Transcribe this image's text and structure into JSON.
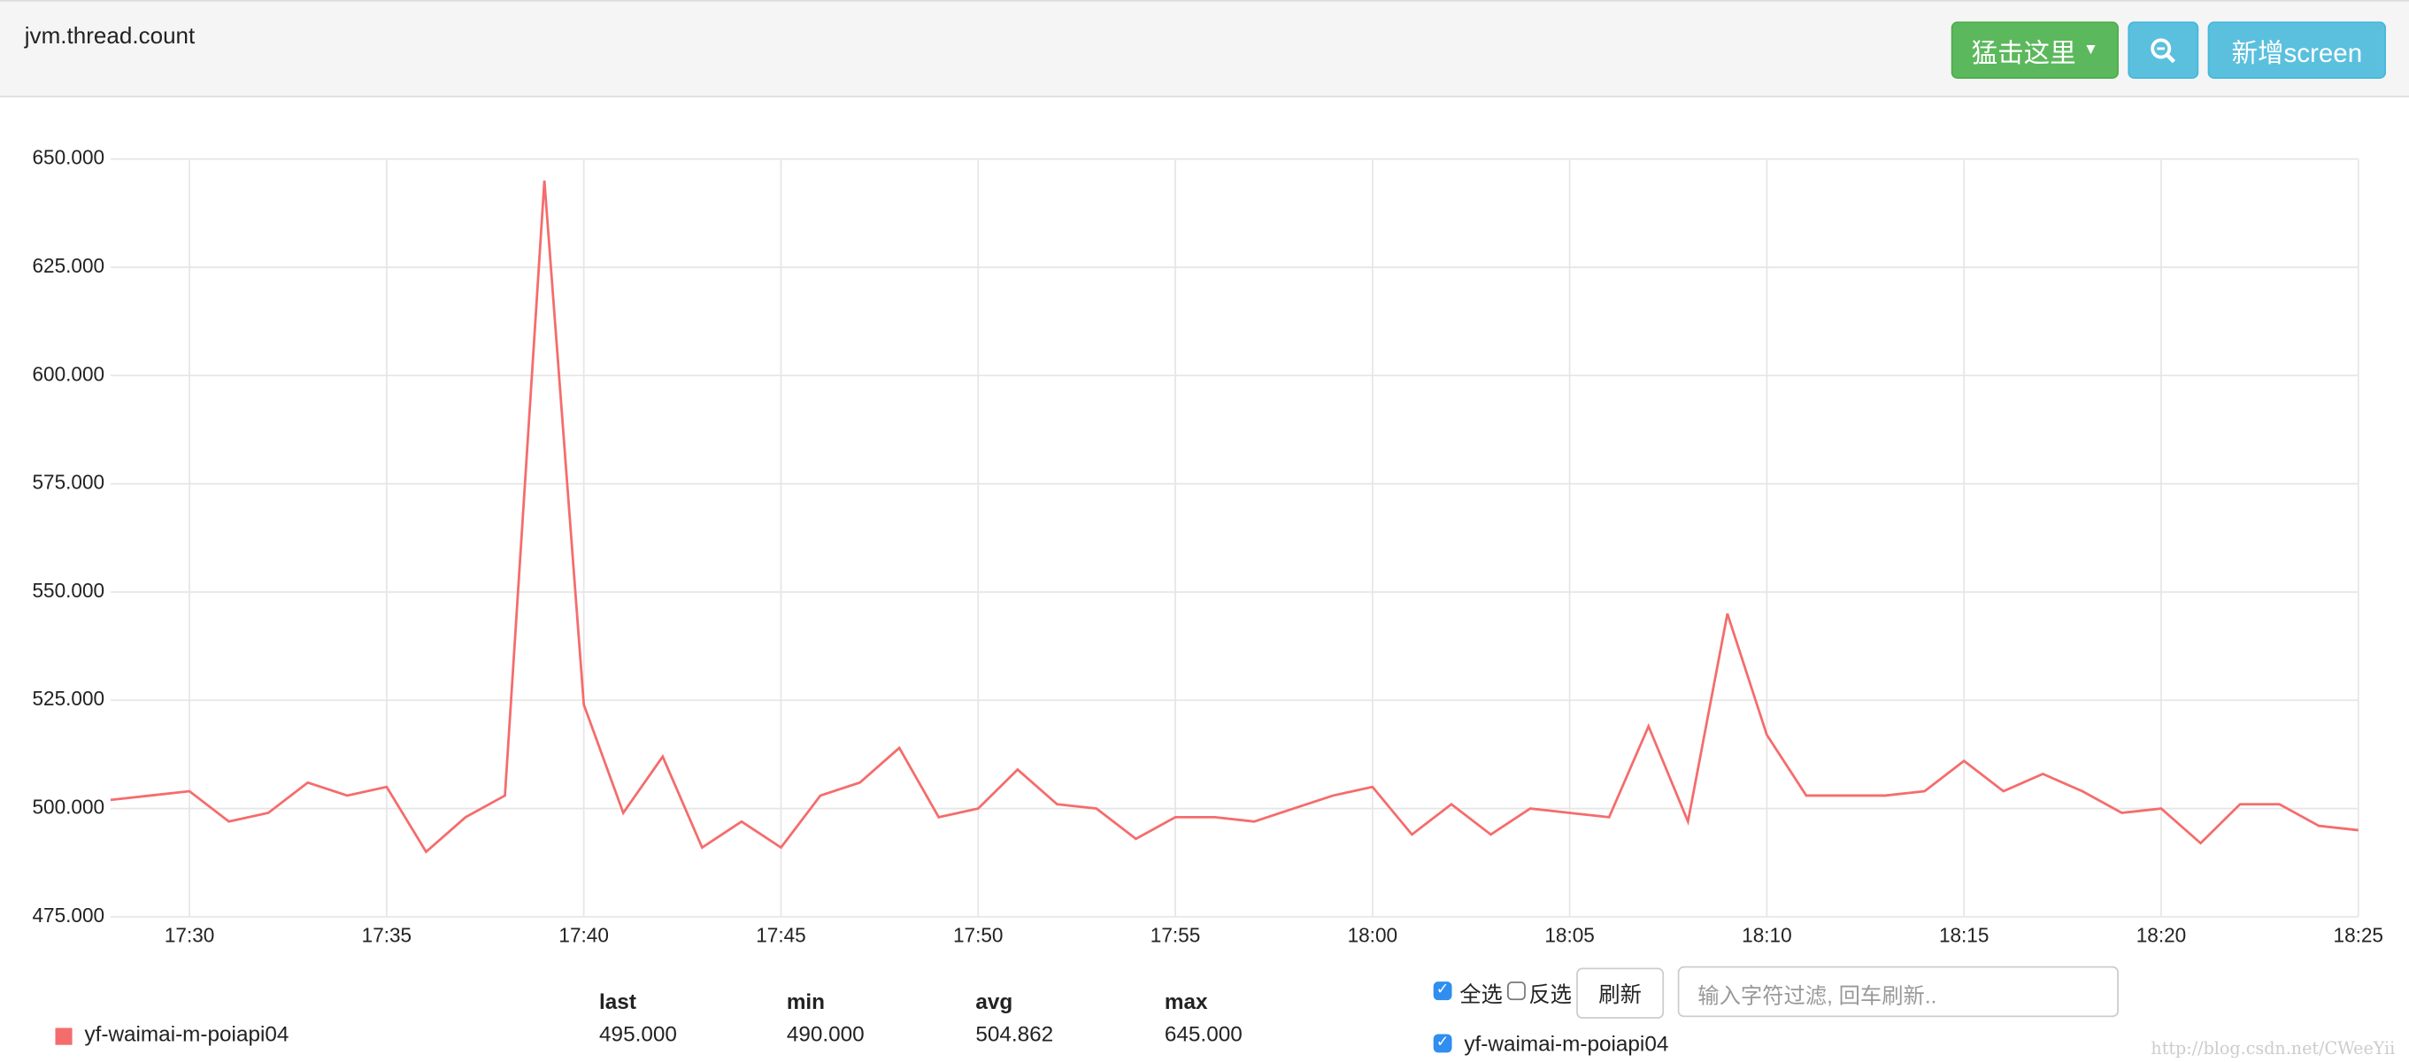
{
  "header": {
    "title": "jvm.thread.count",
    "buttons": [
      "猛击这里",
      "新增screen"
    ]
  },
  "chart_data": {
    "type": "line",
    "x": [
      "17:28",
      "17:29",
      "17:30",
      "17:31",
      "17:32",
      "17:33",
      "17:34",
      "17:35",
      "17:36",
      "17:37",
      "17:38",
      "17:39",
      "17:40",
      "17:41",
      "17:42",
      "17:43",
      "17:44",
      "17:45",
      "17:46",
      "17:47",
      "17:48",
      "17:49",
      "17:50",
      "17:51",
      "17:52",
      "17:53",
      "17:54",
      "17:55",
      "17:56",
      "17:57",
      "17:58",
      "17:59",
      "18:00",
      "18:01",
      "18:02",
      "18:03",
      "18:04",
      "18:05",
      "18:06",
      "18:07",
      "18:08",
      "18:09",
      "18:10",
      "18:11",
      "18:12",
      "18:13",
      "18:14",
      "18:15",
      "18:16",
      "18:17",
      "18:18",
      "18:19",
      "18:20",
      "18:21",
      "18:22",
      "18:23",
      "18:24",
      "18:25"
    ],
    "xlim": [
      "17:28",
      "18:25"
    ],
    "xticks": [
      "17:30",
      "17:35",
      "17:40",
      "17:45",
      "17:50",
      "17:55",
      "18:00",
      "18:05",
      "18:10",
      "18:15",
      "18:20",
      "18:25"
    ],
    "ylim": [
      475,
      650
    ],
    "yticks": [
      {
        "value": 475,
        "label": "475.000"
      },
      {
        "value": 500,
        "label": "500.000"
      },
      {
        "value": 525,
        "label": "525.000"
      },
      {
        "value": 550,
        "label": "550.000"
      },
      {
        "value": 575,
        "label": "575.000"
      },
      {
        "value": 600,
        "label": "600.000"
      },
      {
        "value": 625,
        "label": "625.000"
      },
      {
        "value": 650,
        "label": "650.000"
      }
    ],
    "grid": true,
    "series": [
      {
        "name": "yf-waimai-m-poiapi04",
        "color": "#f56c6c",
        "values": [
          502,
          503,
          504,
          497,
          499,
          506,
          503,
          505,
          490,
          498,
          503,
          645,
          524,
          499,
          512,
          491,
          497,
          491,
          503,
          506,
          514,
          498,
          500,
          509,
          501,
          500,
          493,
          498,
          498,
          497,
          500,
          503,
          505,
          494,
          501,
          494,
          500,
          499,
          498,
          519,
          497,
          545,
          517,
          503,
          503,
          503,
          504,
          511,
          504,
          508,
          504,
          499,
          500,
          492,
          501,
          501,
          496,
          495
        ]
      }
    ]
  },
  "legend_table": {
    "columns": [
      "last",
      "min",
      "avg",
      "max"
    ],
    "rows": [
      {
        "values": [
          "495.000",
          "490.000",
          "504.862",
          "645.000"
        ]
      }
    ]
  },
  "filter": {
    "select_all": "全选",
    "invert": "反选",
    "refresh": "刷新",
    "placeholder": "输入字符过滤, 回车刷新.."
  },
  "watermark": "http://blog.csdn.net/CWeeYii"
}
